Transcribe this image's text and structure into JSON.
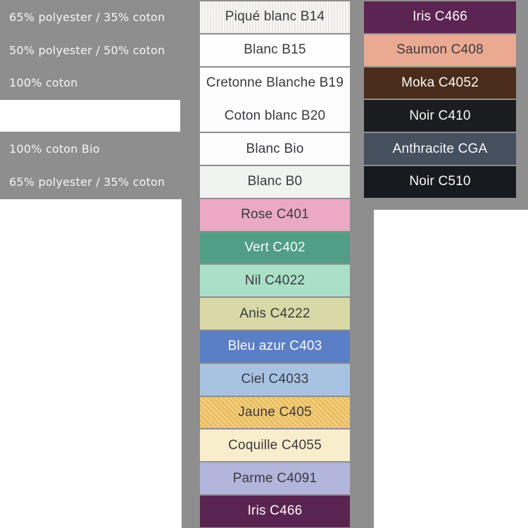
{
  "colors": {
    "background": "#ffffff",
    "panel_gray": "#8e8e8e",
    "text_dark": "#3a3a3e",
    "text_light": "#fafafa"
  },
  "left_panel": {
    "labels": [
      {
        "text": "65% polyester / 35% coton",
        "row": 0
      },
      {
        "text": "50% polyester / 50% coton",
        "row": 1
      },
      {
        "text": "100% coton",
        "row": 2
      },
      {
        "text": "100% coton Bio",
        "row": 4
      },
      {
        "text": "65% polyester / 35% coton",
        "row": 5
      }
    ]
  },
  "middle_column": {
    "swatches": [
      {
        "label": "Piqué blanc B14",
        "bg": "#f2f1ed",
        "text": "dark",
        "texture": "ribbed-vertical"
      },
      {
        "label": "Blanc B15",
        "bg": "#fefefe",
        "text": "dark"
      },
      {
        "labels": [
          "Cretonne Blanche B19",
          "Coton blanc B20"
        ],
        "bg": "#fdfdfd",
        "text": "dark",
        "span": 2
      },
      {
        "label": "Blanc Bio",
        "bg": "#fdfdfe",
        "text": "dark"
      },
      {
        "label": "Blanc B0",
        "bg": "#f0f3f0",
        "text": "dark"
      },
      {
        "label": "Rose C401",
        "bg": "#eba9c5",
        "text": "dark"
      },
      {
        "label": "Vert C402",
        "bg": "#509e85",
        "text": "light"
      },
      {
        "label": "Nil C4022",
        "bg": "#aadfc8",
        "text": "dark"
      },
      {
        "label": "Anis C4222",
        "bg": "#d8d9a6",
        "text": "dark"
      },
      {
        "label": "Bleu azur C403",
        "bg": "#5b7fc7",
        "text": "light"
      },
      {
        "label": "Ciel C4033",
        "bg": "#a8c3e2",
        "text": "dark"
      },
      {
        "label": "Jaune C405",
        "bg": "#f2c667",
        "text": "dark",
        "texture": "twill-diagonal"
      },
      {
        "label": "Coquille C4055",
        "bg": "#f8eecb",
        "text": "dark"
      },
      {
        "label": "Parme C4091",
        "bg": "#b2b5dc",
        "text": "dark"
      },
      {
        "label": "Iris C466",
        "bg": "#5a2450",
        "text": "light"
      }
    ]
  },
  "right_column": {
    "swatches": [
      {
        "label": "Iris C466",
        "bg": "#5c2452",
        "text": "light"
      },
      {
        "label": "Saumon C408",
        "bg": "#eaaa92",
        "text": "dark"
      },
      {
        "label": "Moka C4052",
        "bg": "#4a2c1a",
        "text": "light"
      },
      {
        "label": "Noir C410",
        "bg": "#1a1c20",
        "text": "light"
      },
      {
        "label": "Anthracite CGA",
        "bg": "#454f5e",
        "text": "light"
      },
      {
        "label": "Noir C510",
        "bg": "#171a1f",
        "text": "light"
      }
    ]
  }
}
